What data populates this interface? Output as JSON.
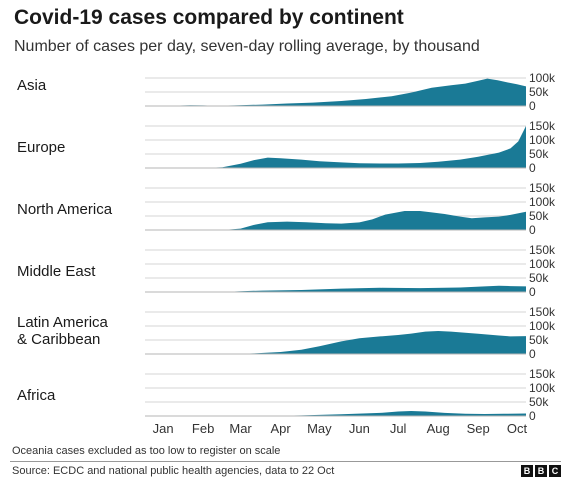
{
  "title": "Covid-19 cases compared by continent",
  "subtitle": "Number of cases per day, seven-day rolling average, by thousand",
  "footnote": "Oceania cases excluded as too low to register on scale",
  "source": "Source: ECDC and national public health agencies, data to 22 Oct",
  "logo": {
    "letters": [
      "B",
      "B",
      "C"
    ]
  },
  "colors": {
    "area": "#1a7a96",
    "grid": "#d4d4d4",
    "baseline": "#b5b5b5"
  },
  "chart_data": {
    "type": "area",
    "layout": "small-multiples",
    "x_unit": "date",
    "x_tick_labels": [
      "Jan",
      "Feb",
      "Mar",
      "Apr",
      "May",
      "Jun",
      "Jul",
      "Aug",
      "Sep",
      "Oct"
    ],
    "x_tick_dates": [
      "2020-01-15",
      "2020-02-15",
      "2020-03-15",
      "2020-04-15",
      "2020-05-15",
      "2020-06-15",
      "2020-07-15",
      "2020-08-15",
      "2020-09-15",
      "2020-10-15"
    ],
    "xlim": [
      "2020-01-01",
      "2020-10-22"
    ],
    "ylim": [
      0,
      150
    ],
    "y_ticks": [
      0,
      50,
      100,
      150
    ],
    "y_tick_labels": [
      "0",
      "50k",
      "100k",
      "150k"
    ],
    "grid": true,
    "series": [
      {
        "name": "Asia",
        "y_tick_labels": [
          "0",
          "50k",
          "100k"
        ],
        "points": [
          [
            "2020-01-01",
            0
          ],
          [
            "2020-01-20",
            1
          ],
          [
            "2020-02-05",
            3
          ],
          [
            "2020-02-15",
            2
          ],
          [
            "2020-02-25",
            1
          ],
          [
            "2020-03-10",
            2
          ],
          [
            "2020-04-01",
            5
          ],
          [
            "2020-04-20",
            9
          ],
          [
            "2020-05-10",
            12
          ],
          [
            "2020-06-01",
            18
          ],
          [
            "2020-06-20",
            25
          ],
          [
            "2020-07-10",
            35
          ],
          [
            "2020-07-25",
            48
          ],
          [
            "2020-08-10",
            65
          ],
          [
            "2020-08-25",
            74
          ],
          [
            "2020-09-05",
            80
          ],
          [
            "2020-09-15",
            90
          ],
          [
            "2020-09-22",
            98
          ],
          [
            "2020-09-30",
            92
          ],
          [
            "2020-10-08",
            84
          ],
          [
            "2020-10-15",
            78
          ],
          [
            "2020-10-22",
            70
          ]
        ]
      },
      {
        "name": "Europe",
        "points": [
          [
            "2020-01-01",
            0
          ],
          [
            "2020-02-15",
            0
          ],
          [
            "2020-03-01",
            3
          ],
          [
            "2020-03-15",
            15
          ],
          [
            "2020-03-25",
            28
          ],
          [
            "2020-04-05",
            37
          ],
          [
            "2020-04-15",
            35
          ],
          [
            "2020-05-01",
            30
          ],
          [
            "2020-05-15",
            24
          ],
          [
            "2020-06-01",
            20
          ],
          [
            "2020-06-15",
            17
          ],
          [
            "2020-07-01",
            16
          ],
          [
            "2020-07-15",
            16
          ],
          [
            "2020-08-01",
            18
          ],
          [
            "2020-08-15",
            22
          ],
          [
            "2020-09-01",
            30
          ],
          [
            "2020-09-15",
            40
          ],
          [
            "2020-10-01",
            55
          ],
          [
            "2020-10-10",
            70
          ],
          [
            "2020-10-16",
            95
          ],
          [
            "2020-10-22",
            150
          ]
        ]
      },
      {
        "name": "North America",
        "points": [
          [
            "2020-01-01",
            0
          ],
          [
            "2020-03-01",
            0
          ],
          [
            "2020-03-15",
            5
          ],
          [
            "2020-03-25",
            18
          ],
          [
            "2020-04-05",
            28
          ],
          [
            "2020-04-20",
            30
          ],
          [
            "2020-05-05",
            28
          ],
          [
            "2020-05-20",
            24
          ],
          [
            "2020-06-01",
            23
          ],
          [
            "2020-06-15",
            27
          ],
          [
            "2020-06-25",
            38
          ],
          [
            "2020-07-05",
            55
          ],
          [
            "2020-07-20",
            68
          ],
          [
            "2020-08-01",
            68
          ],
          [
            "2020-08-10",
            63
          ],
          [
            "2020-08-20",
            57
          ],
          [
            "2020-09-01",
            48
          ],
          [
            "2020-09-10",
            42
          ],
          [
            "2020-09-20",
            45
          ],
          [
            "2020-10-01",
            48
          ],
          [
            "2020-10-10",
            54
          ],
          [
            "2020-10-22",
            65
          ]
        ]
      },
      {
        "name": "Middle East",
        "points": [
          [
            "2020-01-01",
            0
          ],
          [
            "2020-03-01",
            0
          ],
          [
            "2020-03-15",
            3
          ],
          [
            "2020-04-01",
            5
          ],
          [
            "2020-05-01",
            7
          ],
          [
            "2020-06-01",
            12
          ],
          [
            "2020-07-01",
            15
          ],
          [
            "2020-08-01",
            14
          ],
          [
            "2020-09-01",
            16
          ],
          [
            "2020-09-20",
            20
          ],
          [
            "2020-10-01",
            22
          ],
          [
            "2020-10-10",
            21
          ],
          [
            "2020-10-22",
            20
          ]
        ]
      },
      {
        "name": "Latin America & Caribbean",
        "points": [
          [
            "2020-01-01",
            0
          ],
          [
            "2020-03-10",
            0
          ],
          [
            "2020-03-25",
            2
          ],
          [
            "2020-04-15",
            7
          ],
          [
            "2020-05-01",
            15
          ],
          [
            "2020-05-15",
            28
          ],
          [
            "2020-06-01",
            45
          ],
          [
            "2020-06-15",
            56
          ],
          [
            "2020-07-01",
            63
          ],
          [
            "2020-07-15",
            68
          ],
          [
            "2020-07-25",
            73
          ],
          [
            "2020-08-05",
            80
          ],
          [
            "2020-08-15",
            82
          ],
          [
            "2020-08-25",
            80
          ],
          [
            "2020-09-05",
            76
          ],
          [
            "2020-09-15",
            72
          ],
          [
            "2020-10-01",
            66
          ],
          [
            "2020-10-10",
            63
          ],
          [
            "2020-10-22",
            64
          ]
        ]
      },
      {
        "name": "Africa",
        "points": [
          [
            "2020-01-01",
            0
          ],
          [
            "2020-04-01",
            0
          ],
          [
            "2020-05-01",
            2
          ],
          [
            "2020-06-01",
            6
          ],
          [
            "2020-07-01",
            11
          ],
          [
            "2020-07-15",
            16
          ],
          [
            "2020-07-25",
            18
          ],
          [
            "2020-08-05",
            16
          ],
          [
            "2020-08-20",
            11
          ],
          [
            "2020-09-05",
            8
          ],
          [
            "2020-09-20",
            7
          ],
          [
            "2020-10-05",
            8
          ],
          [
            "2020-10-22",
            9
          ]
        ]
      }
    ]
  }
}
